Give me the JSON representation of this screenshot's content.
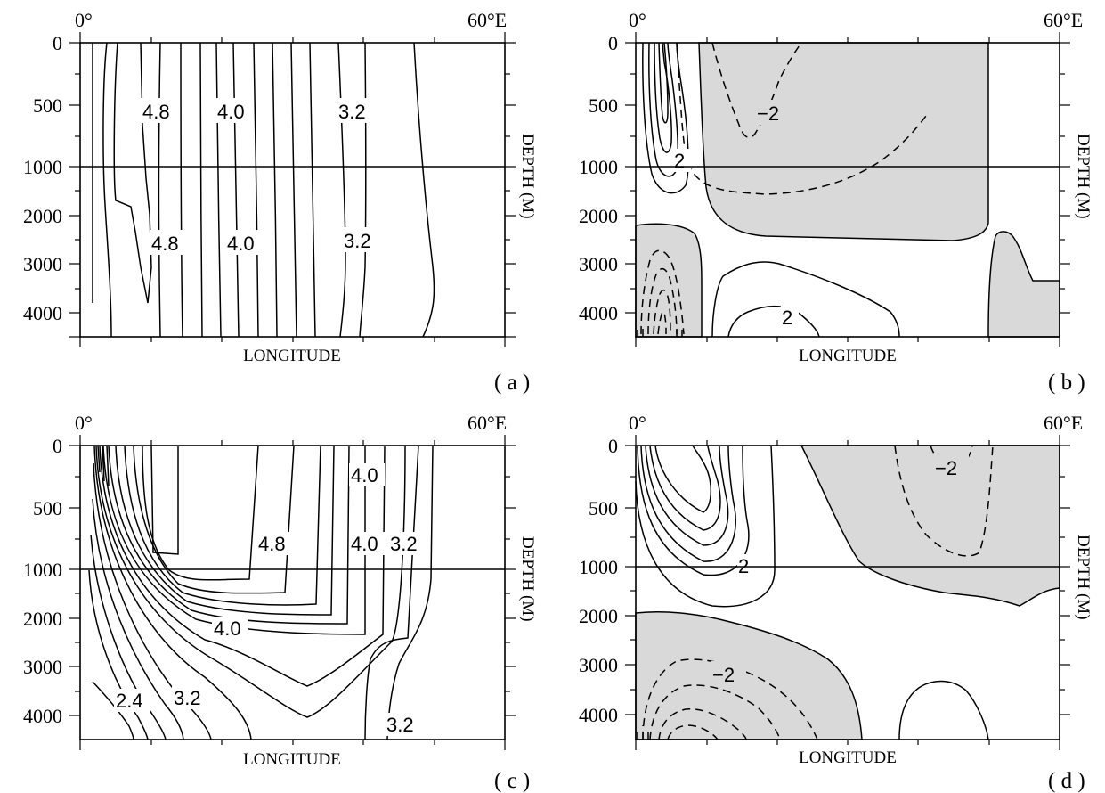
{
  "panels": [
    {
      "id": "a",
      "tag": "( a )",
      "lon_left": "0°",
      "lon_right": "60°E",
      "xlabel": "LONGITUDE",
      "ylabel": "DEPTH (M)",
      "depth_ticks": [
        "0",
        "500",
        "1000",
        "2000",
        "3000",
        "4000"
      ],
      "contour_labels": [
        "4.8",
        "4.0",
        "3.2",
        "4.8",
        "4.0",
        "3.2"
      ]
    },
    {
      "id": "b",
      "tag": "( b )",
      "lon_left": "0°",
      "lon_right": "60°E",
      "xlabel": "LONGITUDE",
      "ylabel": "DEPTH (M)",
      "depth_ticks": [
        "0",
        "500",
        "1000",
        "2000",
        "3000",
        "4000"
      ],
      "contour_labels": [
        "−2",
        "2",
        "2"
      ]
    },
    {
      "id": "c",
      "tag": "( c )",
      "lon_left": "0°",
      "lon_right": "60°E",
      "xlabel": "LONGITUDE",
      "ylabel": "DEPTH (M)",
      "depth_ticks": [
        "0",
        "500",
        "1000",
        "2000",
        "3000",
        "4000"
      ],
      "contour_labels": [
        "4.0",
        "4.8",
        "4.0",
        "3.2",
        "4.0",
        "2.4",
        "3.2",
        "3.2"
      ]
    },
    {
      "id": "d",
      "tag": "( d )",
      "lon_left": "0°",
      "lon_right": "60°E",
      "xlabel": "LONGITUDE",
      "ylabel": "DEPTH (M)",
      "depth_ticks": [
        "0",
        "500",
        "1000",
        "2000",
        "3000",
        "4000"
      ],
      "contour_labels": [
        "−2",
        "2",
        "−2"
      ]
    }
  ],
  "colors": {
    "shading": "#d9d9d9",
    "lines": "#000000"
  }
}
